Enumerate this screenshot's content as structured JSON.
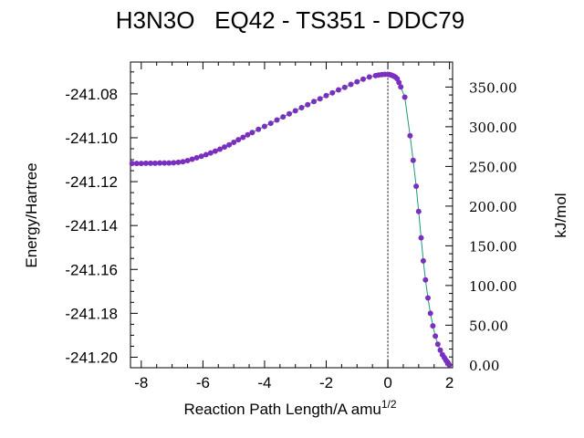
{
  "chart_data": {
    "type": "scatter",
    "title": "H3N3O   EQ42 - TS351 - DDC79",
    "xlabel": "Reaction Path Length/A amu",
    "xlabel_sup": "1/2",
    "ylabel": "Energy/Hartree",
    "y2label": "kJ/mol",
    "xlim": [
      -8.35,
      2.1
    ],
    "ylim": [
      -241.2048,
      -241.0655
    ],
    "x_ticks": [
      "-8",
      "-6",
      "-4",
      "-2",
      "0",
      "2"
    ],
    "y_ticks": [
      "-241.08",
      "-241.10",
      "-241.12",
      "-241.14",
      "-241.16",
      "-241.18",
      "-241.20"
    ],
    "y2_ticks": [
      "0.00",
      "50.00",
      "100.00",
      "150.00",
      "200.00",
      "250.00",
      "300.00",
      "350.00"
    ],
    "y2_range_kjmol": [
      0,
      366
    ],
    "ts_marker_x": 0,
    "grid": false,
    "colors": {
      "points": "#7b2fbf",
      "line": "#1a9a7a",
      "ts_line": "#000000"
    },
    "series": [
      {
        "x": [
          -8.3,
          -8.15,
          -8.0,
          -7.85,
          -7.7,
          -7.55,
          -7.4,
          -7.25,
          -7.1,
          -6.95,
          -6.8,
          -6.65,
          -6.5,
          -6.35,
          -6.2,
          -6.05,
          -5.9,
          -5.75,
          -5.6,
          -5.45,
          -5.3,
          -5.15,
          -5.0,
          -4.85,
          -4.7,
          -4.55,
          -4.4,
          -4.2,
          -4.0,
          -3.8,
          -3.6,
          -3.4,
          -3.2,
          -3.0,
          -2.8,
          -2.6,
          -2.4,
          -2.2,
          -2.0,
          -1.8,
          -1.6,
          -1.4,
          -1.2,
          -1.0,
          -0.8,
          -0.6,
          -0.4,
          -0.3,
          -0.2,
          -0.1,
          0.0,
          0.06,
          0.12,
          0.18,
          0.24,
          0.3,
          0.36,
          0.42,
          0.55,
          0.72,
          0.82,
          0.92,
          1.0,
          1.08,
          1.15,
          1.22,
          1.3,
          1.38,
          1.46,
          1.54,
          1.62,
          1.7,
          1.77,
          1.83,
          1.88,
          1.92,
          1.96,
          1.99
        ],
        "y": [
          -241.1117,
          -241.1117,
          -241.1117,
          -241.1116,
          -241.1116,
          -241.1116,
          -241.1115,
          -241.1115,
          -241.1115,
          -241.1114,
          -241.1112,
          -241.1109,
          -241.1104,
          -241.1098,
          -241.1091,
          -241.1084,
          -241.1077,
          -241.1069,
          -241.1061,
          -241.1052,
          -241.1042,
          -241.1032,
          -241.1021,
          -241.1009,
          -241.0998,
          -241.0987,
          -241.0976,
          -241.0962,
          -241.0948,
          -241.0934,
          -241.0919,
          -241.0905,
          -241.0891,
          -241.0877,
          -241.0863,
          -241.0849,
          -241.0835,
          -241.0822,
          -241.0808,
          -241.0795,
          -241.0782,
          -241.077,
          -241.0757,
          -241.0745,
          -241.0733,
          -241.0723,
          -241.0717,
          -241.0714,
          -241.0712,
          -241.0711,
          -241.0711,
          -241.0712,
          -241.0715,
          -241.0718,
          -241.0723,
          -241.0731,
          -241.0748,
          -241.0768,
          -241.0815,
          -241.0991,
          -241.1103,
          -241.1221,
          -241.1336,
          -241.1456,
          -241.1561,
          -241.1648,
          -241.173,
          -241.18,
          -241.1857,
          -241.1904,
          -241.1941,
          -241.1968,
          -241.1989,
          -241.2002,
          -241.2013,
          -241.2021,
          -241.2029,
          -241.2035
        ]
      }
    ]
  }
}
